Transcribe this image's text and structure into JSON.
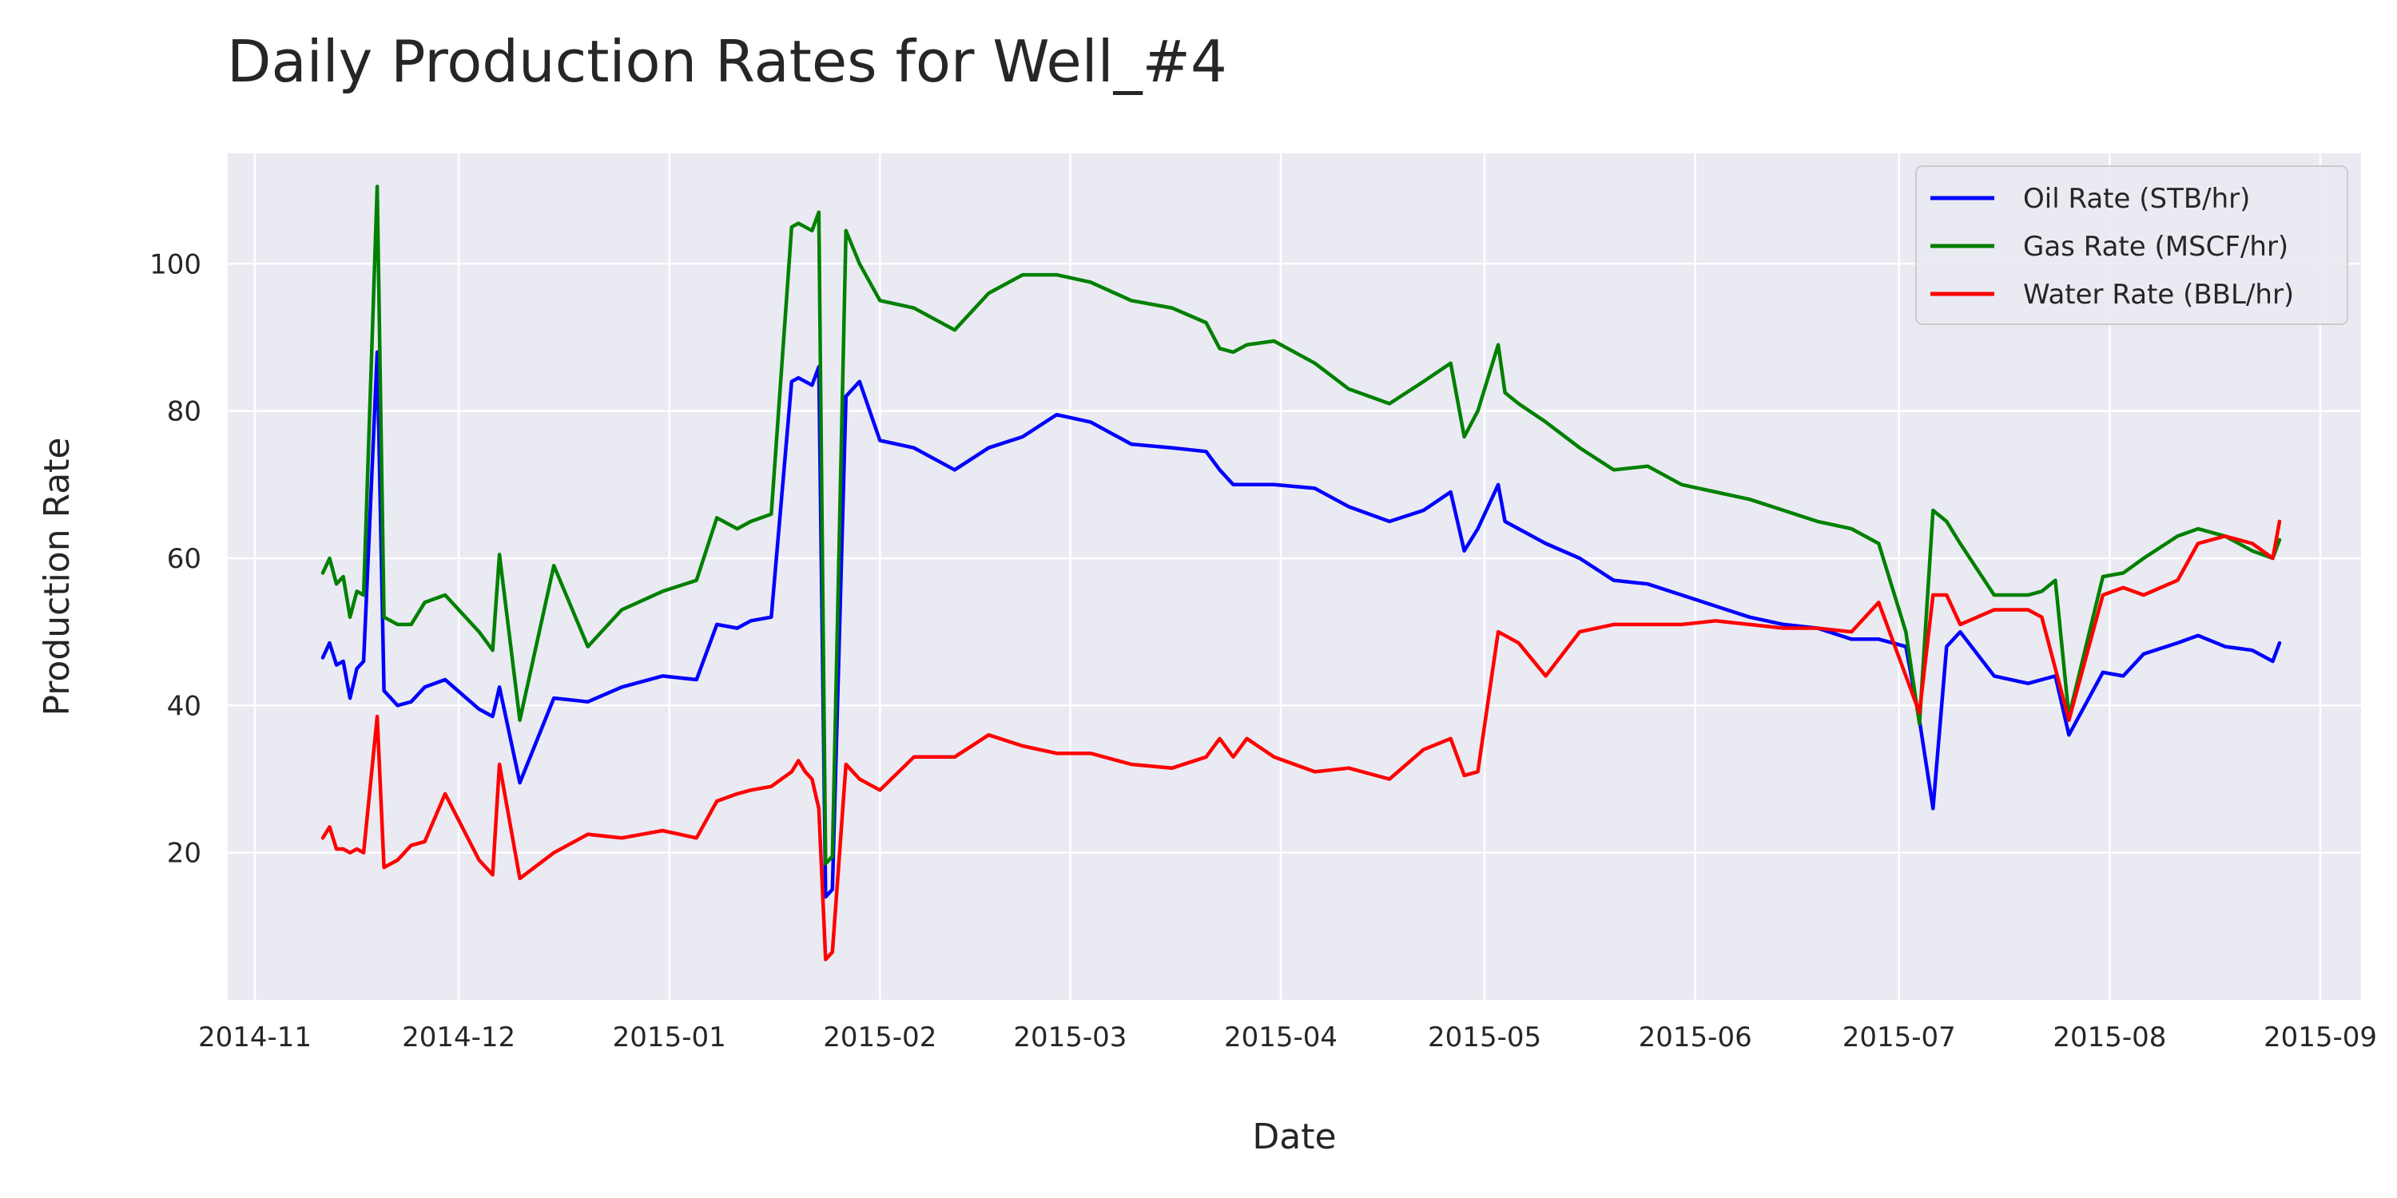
{
  "chart_data": {
    "type": "line",
    "title": "Daily Production Rates for Well_#4",
    "xlabel": "Date",
    "ylabel": "Production Rate",
    "xlim": [
      "2014-10-28",
      "2015-09-07"
    ],
    "ylim": [
      0,
      115
    ],
    "x_ticks": [
      "2014-11",
      "2014-12",
      "2015-01",
      "2015-02",
      "2015-03",
      "2015-04",
      "2015-05",
      "2015-06",
      "2015-07",
      "2015-08",
      "2015-09"
    ],
    "y_ticks": [
      20,
      40,
      60,
      80,
      100
    ],
    "grid": true,
    "legend_position": "top-right",
    "colors": {
      "oil": "#0000ff",
      "gas": "#008000",
      "water": "#ff0000",
      "plot_bg": "#eaeaf2",
      "grid": "#ffffff"
    },
    "x": [
      "2014-11-11",
      "2014-11-12",
      "2014-11-13",
      "2014-11-14",
      "2014-11-15",
      "2014-11-16",
      "2014-11-17",
      "2014-11-19",
      "2014-11-20",
      "2014-11-22",
      "2014-11-24",
      "2014-11-26",
      "2014-11-29",
      "2014-12-04",
      "2014-12-06",
      "2014-12-07",
      "2014-12-10",
      "2014-12-15",
      "2014-12-20",
      "2014-12-25",
      "2014-12-31",
      "2015-01-05",
      "2015-01-08",
      "2015-01-11",
      "2015-01-13",
      "2015-01-16",
      "2015-01-19",
      "2015-01-20",
      "2015-01-21",
      "2015-01-22",
      "2015-01-23",
      "2015-01-24",
      "2015-01-25",
      "2015-01-27",
      "2015-01-29",
      "2015-02-01",
      "2015-02-06",
      "2015-02-12",
      "2015-02-17",
      "2015-02-22",
      "2015-02-27",
      "2015-03-04",
      "2015-03-10",
      "2015-03-16",
      "2015-03-21",
      "2015-03-23",
      "2015-03-25",
      "2015-03-27",
      "2015-03-31",
      "2015-04-06",
      "2015-04-11",
      "2015-04-17",
      "2015-04-22",
      "2015-04-26",
      "2015-04-28",
      "2015-04-30",
      "2015-05-03",
      "2015-05-04",
      "2015-05-06",
      "2015-05-10",
      "2015-05-15",
      "2015-05-20",
      "2015-05-25",
      "2015-05-30",
      "2015-06-04",
      "2015-06-09",
      "2015-06-14",
      "2015-06-19",
      "2015-06-24",
      "2015-06-28",
      "2015-07-02",
      "2015-07-04",
      "2015-07-06",
      "2015-07-08",
      "2015-07-10",
      "2015-07-15",
      "2015-07-20",
      "2015-07-22",
      "2015-07-24",
      "2015-07-26",
      "2015-07-31",
      "2015-08-03",
      "2015-08-06",
      "2015-08-11",
      "2015-08-14",
      "2015-08-18",
      "2015-08-22",
      "2015-08-25",
      "2015-08-26"
    ],
    "series": [
      {
        "name": "Oil Rate (STB/hr)",
        "color": "#0000ff",
        "values": [
          46.5,
          48.5,
          45.5,
          46,
          41,
          45,
          46,
          88,
          42,
          40,
          40.5,
          42.5,
          43.5,
          39.5,
          38.5,
          42.5,
          29.5,
          41,
          40.5,
          42.5,
          44,
          43.5,
          51,
          50.5,
          51.5,
          52,
          84,
          84.5,
          84,
          83.5,
          86,
          14,
          15,
          82,
          84,
          76,
          75,
          72,
          75,
          76.5,
          79.5,
          78.5,
          75.5,
          75,
          74.5,
          72,
          70,
          70,
          70,
          69.5,
          67,
          65,
          66.5,
          69,
          61,
          64,
          70,
          65,
          64,
          62,
          60,
          57,
          56.5,
          55,
          53.5,
          52,
          51,
          50.5,
          49,
          49,
          48,
          38,
          26,
          48,
          50,
          44,
          43,
          43.5,
          44,
          36,
          44.5,
          44,
          47,
          48.5,
          49.5,
          48,
          47.5,
          46,
          48.5
        ]
      },
      {
        "name": "Gas Rate (MSCF/hr)",
        "color": "#008000",
        "values": [
          58,
          60,
          56.5,
          57.5,
          52,
          55.5,
          55,
          110.5,
          52,
          51,
          51,
          54,
          55,
          50,
          47.5,
          60.5,
          38,
          59,
          48,
          53,
          55.5,
          57,
          65.5,
          64,
          65,
          66,
          105,
          105.5,
          105,
          104.5,
          107,
          18.5,
          19.5,
          104.5,
          100,
          95,
          94,
          91,
          96,
          98.5,
          98.5,
          97.5,
          95,
          94,
          92,
          88.5,
          88,
          89,
          89.5,
          86.5,
          83,
          81,
          84,
          86.5,
          76.5,
          80,
          89,
          82.5,
          81,
          78.5,
          75,
          72,
          72.5,
          70,
          69,
          68,
          66.5,
          65,
          64,
          62,
          50,
          37.5,
          66.5,
          65,
          62,
          55,
          55,
          55.5,
          57,
          38.5,
          57.5,
          58,
          60,
          63,
          64,
          63,
          61,
          60,
          62.5
        ]
      },
      {
        "name": "Water Rate (BBL/hr)",
        "color": "#ff0000",
        "values": [
          22,
          23.5,
          20.5,
          20.5,
          20,
          20.5,
          20,
          38.5,
          18,
          19,
          21,
          21.5,
          28,
          19,
          17,
          32,
          16.5,
          20,
          22.5,
          22,
          23,
          22,
          27,
          28,
          28.5,
          29,
          31,
          32.5,
          31,
          30,
          26,
          5.5,
          6.5,
          32,
          30,
          28.5,
          33,
          33,
          36,
          34.5,
          33.5,
          33.5,
          32,
          31.5,
          33,
          35.5,
          33,
          35.5,
          33,
          31,
          31.5,
          30,
          34,
          35.5,
          30.5,
          31,
          50,
          49.5,
          48.5,
          44,
          50,
          51,
          51,
          51,
          51.5,
          51,
          50.5,
          50.5,
          50,
          54,
          44,
          39,
          55,
          55,
          51,
          53,
          53,
          52,
          45,
          38,
          55,
          56,
          55,
          57,
          62,
          63,
          62,
          60,
          65
        ]
      }
    ]
  }
}
